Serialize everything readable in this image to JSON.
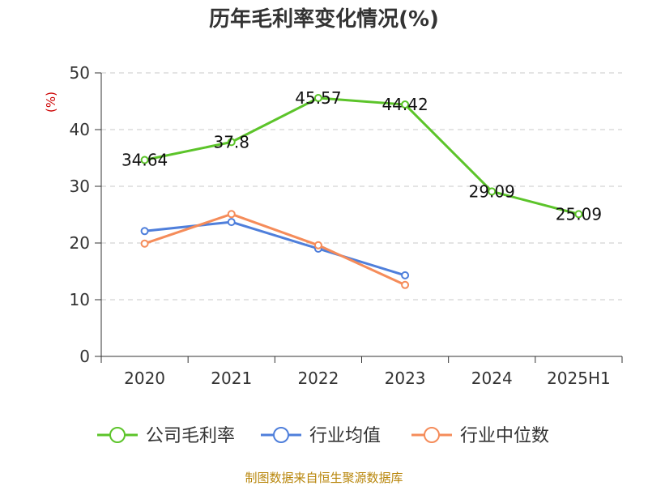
{
  "chart_data": {
    "type": "line",
    "title": "历年毛利率变化情况(%)",
    "ylabel": "(%)",
    "xlabel": "",
    "categories": [
      "2020",
      "2021",
      "2022",
      "2023",
      "2024",
      "2025H1"
    ],
    "ylim": [
      0,
      50
    ],
    "yticks": [
      0,
      10,
      20,
      30,
      40,
      50
    ],
    "grid": true,
    "legend_position": "bottom",
    "series": [
      {
        "name": "公司毛利率",
        "color": "#5cc42a",
        "values": [
          34.64,
          37.8,
          45.57,
          44.42,
          29.09,
          25.09
        ],
        "labels": [
          "34.64",
          "37.8",
          "45.57",
          "44.42",
          "29.09",
          "25.09"
        ]
      },
      {
        "name": "行业均值",
        "color": "#4f7fdb",
        "values": [
          22.1,
          23.7,
          19.0,
          14.3,
          null,
          null
        ]
      },
      {
        "name": "行业中位数",
        "color": "#f58c5a",
        "values": [
          19.9,
          25.1,
          19.6,
          12.6,
          null,
          null
        ]
      }
    ]
  },
  "source_text": "制图数据来自恒生聚源数据库"
}
